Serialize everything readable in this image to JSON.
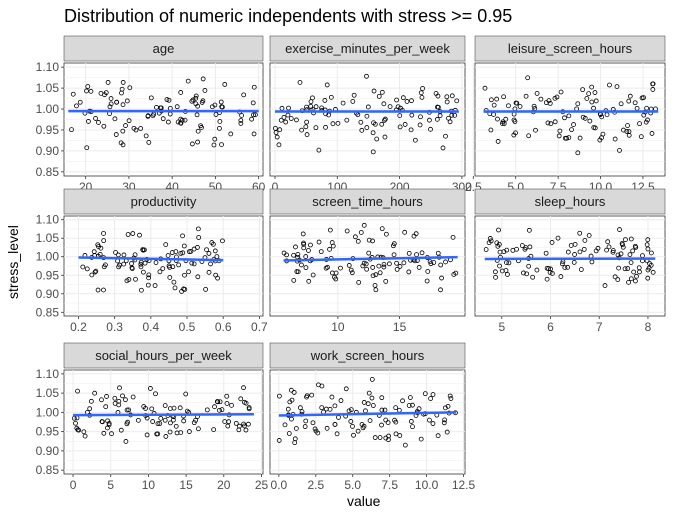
{
  "chart_data": {
    "type": "scatter",
    "title": "Distribution of numeric independents with stress >= 0.95",
    "xlabel": "value",
    "ylabel": "stress_level",
    "ylim": [
      0.84,
      1.11
    ],
    "yticks": [
      "0.85",
      "0.90",
      "0.95",
      "1.00",
      "1.05",
      "1.10"
    ],
    "colors": {
      "strip": "#d9d9d9",
      "grid": "#ebebeb",
      "point": "#000000",
      "smooth": "#3366ff",
      "band": "#999999"
    },
    "facets": [
      {
        "name": "age",
        "xlim": [
          15,
          61
        ],
        "xticks": [
          20,
          30,
          40,
          50,
          60
        ],
        "xtick_labels": [
          "20",
          "30",
          "40",
          "50",
          "60"
        ],
        "smooth": [
          [
            16,
            0.995
          ],
          [
            60,
            0.995
          ]
        ]
      },
      {
        "name": "exercise_minutes_per_week",
        "xlim": [
          -8,
          305
        ],
        "xticks": [
          0,
          100,
          200,
          300
        ],
        "xtick_labels": [
          "0",
          "100",
          "200",
          "300"
        ],
        "smooth": [
          [
            0,
            0.994
          ],
          [
            295,
            0.994
          ]
        ]
      },
      {
        "name": "leisure_screen_hours",
        "xlim": [
          2.6,
          13.8
        ],
        "xticks": [
          2.5,
          5.0,
          7.5,
          10.0,
          12.5
        ],
        "xtick_labels": [
          "2.5",
          "5.0",
          "7.5",
          "10.0",
          "12.5"
        ],
        "smooth": [
          [
            3.1,
            0.994
          ],
          [
            13.4,
            0.994
          ]
        ]
      },
      {
        "name": "productivity",
        "xlim": [
          0.16,
          0.71
        ],
        "xticks": [
          0.2,
          0.3,
          0.4,
          0.5,
          0.6,
          0.7
        ],
        "xtick_labels": [
          "0.2",
          "0.3",
          "0.4",
          "0.5",
          "0.6",
          "0.7"
        ],
        "smooth": [
          [
            0.2,
            0.998
          ],
          [
            0.6,
            0.991
          ]
        ]
      },
      {
        "name": "screen_time_hours",
        "xlim": [
          4.5,
          20.3
        ],
        "xticks": [
          10,
          15
        ],
        "xtick_labels": [
          "10",
          "15"
        ],
        "smooth": [
          [
            5.6,
            0.99
          ],
          [
            19.7,
            0.999
          ]
        ]
      },
      {
        "name": "sleep_hours",
        "xlim": [
          4.45,
          8.35
        ],
        "xticks": [
          5,
          6,
          7,
          8
        ],
        "xtick_labels": [
          "5",
          "6",
          "7",
          "8"
        ],
        "smooth": [
          [
            4.65,
            0.994
          ],
          [
            8.15,
            0.995
          ]
        ]
      },
      {
        "name": "social_hours_per_week",
        "xlim": [
          -1.2,
          25.2
        ],
        "xticks": [
          0,
          5,
          10,
          15,
          20,
          25
        ],
        "xtick_labels": [
          "0",
          "5",
          "10",
          "15",
          "20",
          "25"
        ],
        "smooth": [
          [
            0,
            0.993
          ],
          [
            24,
            0.995
          ]
        ]
      },
      {
        "name": "work_screen_hours",
        "xlim": [
          -0.6,
          12.6
        ],
        "xticks": [
          0.0,
          2.5,
          5.0,
          7.5,
          10.0,
          12.5
        ],
        "xtick_labels": [
          "0.0",
          "2.5",
          "5.0",
          "7.5",
          "10.0",
          "12.5"
        ],
        "smooth": [
          [
            0,
            0.992
          ],
          [
            12,
            1.0
          ]
        ]
      }
    ]
  }
}
